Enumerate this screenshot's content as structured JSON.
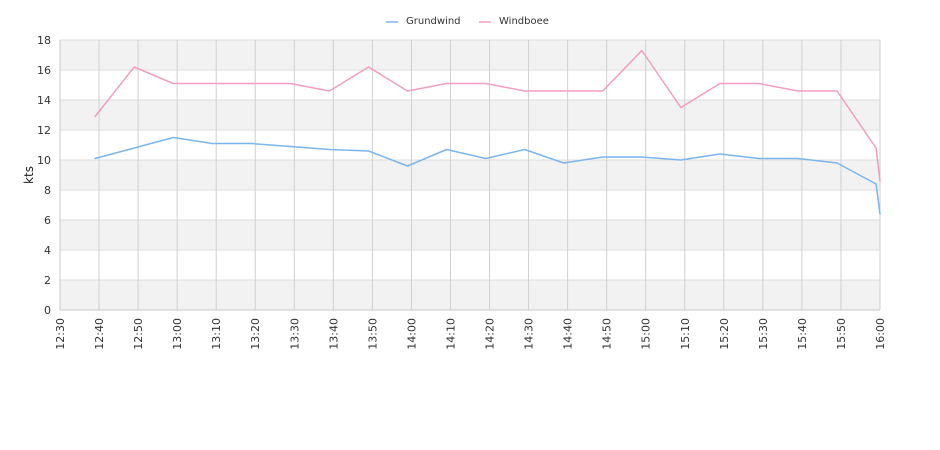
{
  "chart_data": {
    "type": "line",
    "title": "",
    "xlabel": "",
    "ylabel": "kts",
    "ylim": [
      0,
      18
    ],
    "yticks": [
      "0",
      "2",
      "4",
      "6",
      "8",
      "10",
      "12",
      "14",
      "16",
      "18"
    ],
    "xticks": [
      "12:30",
      "12:40",
      "12:50",
      "13:00",
      "13:10",
      "13:20",
      "13:30",
      "13:40",
      "13:50",
      "14:00",
      "14:10",
      "14:20",
      "14:30",
      "14:40",
      "14:50",
      "15:00",
      "15:10",
      "15:20",
      "15:30",
      "15:40",
      "15:50",
      "16:00"
    ],
    "xlim": [
      "12:30",
      "16:00"
    ],
    "grid": true,
    "legend": "top-center",
    "series": [
      {
        "name": "Grundwind",
        "color": "#7cb5ec",
        "points": [
          [
            "12:39",
            10.1
          ],
          [
            "12:49",
            10.8
          ],
          [
            "12:59",
            11.5
          ],
          [
            "13:09",
            11.1
          ],
          [
            "13:19",
            11.1
          ],
          [
            "13:29",
            10.9
          ],
          [
            "13:39",
            10.7
          ],
          [
            "13:49",
            10.6
          ],
          [
            "13:59",
            9.6
          ],
          [
            "14:09",
            10.7
          ],
          [
            "14:19",
            10.1
          ],
          [
            "14:29",
            10.7
          ],
          [
            "14:39",
            9.8
          ],
          [
            "14:49",
            10.2
          ],
          [
            "14:59",
            10.2
          ],
          [
            "15:09",
            10.0
          ],
          [
            "15:19",
            10.4
          ],
          [
            "15:29",
            10.1
          ],
          [
            "15:39",
            10.1
          ],
          [
            "15:49",
            9.8
          ],
          [
            "15:59",
            8.4
          ],
          [
            "16:00",
            6.4
          ]
        ]
      },
      {
        "name": "Windboee",
        "color": "#f19ec2",
        "points": [
          [
            "12:39",
            12.9
          ],
          [
            "12:49",
            16.2
          ],
          [
            "12:59",
            15.1
          ],
          [
            "13:09",
            15.1
          ],
          [
            "13:19",
            15.1
          ],
          [
            "13:29",
            15.1
          ],
          [
            "13:39",
            14.6
          ],
          [
            "13:49",
            16.2
          ],
          [
            "13:59",
            14.6
          ],
          [
            "14:09",
            15.1
          ],
          [
            "14:19",
            15.1
          ],
          [
            "14:29",
            14.6
          ],
          [
            "14:39",
            14.6
          ],
          [
            "14:49",
            14.6
          ],
          [
            "14:59",
            17.3
          ],
          [
            "15:09",
            13.5
          ],
          [
            "15:19",
            15.1
          ],
          [
            "15:29",
            15.1
          ],
          [
            "15:39",
            14.6
          ],
          [
            "15:49",
            14.6
          ],
          [
            "15:59",
            10.8
          ],
          [
            "16:00",
            8.6
          ]
        ]
      }
    ]
  }
}
